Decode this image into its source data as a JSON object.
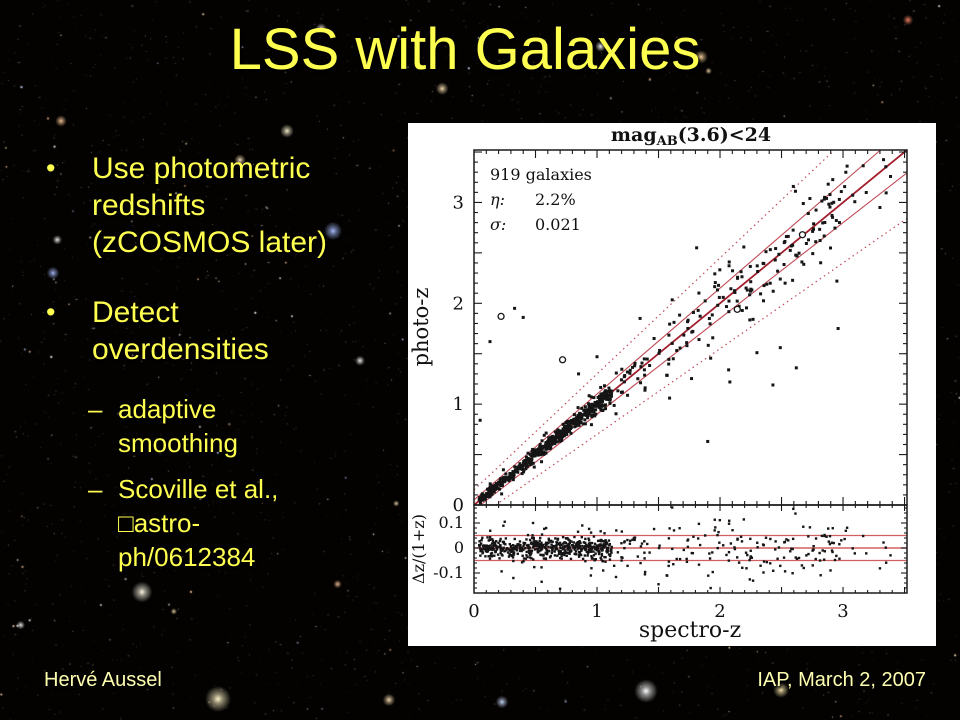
{
  "slide": {
    "title": "LSS with Galaxies",
    "bullets": [
      {
        "level": 1,
        "marker": "•",
        "text": "Use photometric\nredshifts\n(zCOSMOS later)"
      },
      {
        "level": 1,
        "marker": "•",
        "text": "Detect\noverdensities"
      },
      {
        "level": 2,
        "marker": "–",
        "text": "adaptive\nsmoothing"
      },
      {
        "level": 2,
        "marker": "–",
        "text": "Scoville et al.,\n□astro-\nph/0612384"
      }
    ],
    "footer": {
      "author": "Hervé Aussel",
      "venue": "IAP, March 2, 2007"
    },
    "colors": {
      "title": "#ffff4f",
      "body": "#ffff4f",
      "footer": "#ffffb0",
      "background": "#030201"
    }
  },
  "chart_data": {
    "type": "scatter",
    "title": {
      "prefix": "mag",
      "subscript": "AB",
      "suffix": "(3.6)<24",
      "full": "mag_AB(3.6)<24"
    },
    "stats": {
      "count": "919 galaxies",
      "eta_label": "η:",
      "eta_value": "2.2%",
      "sigma_label": "σ:",
      "sigma_value": "0.021"
    },
    "xlabel": "spectro-z",
    "main_panel": {
      "ylabel": "photo-z",
      "xlim": [
        0,
        3.52
      ],
      "ylim": [
        0,
        3.52
      ],
      "xticks": [
        0,
        1,
        2,
        3
      ],
      "xtick_labels": [
        "0",
        "1",
        "2",
        "3"
      ],
      "yticks": [
        0,
        1,
        2,
        3
      ],
      "ytick_labels": [
        "0",
        "1",
        "2",
        "3"
      ],
      "x_minor": 0.1,
      "y_minor": 0.1
    },
    "residual_panel": {
      "ylabel": "Δz/(1+z)",
      "ylim": [
        -0.18,
        0.17
      ],
      "yticks": [
        0.1,
        0,
        -0.1
      ],
      "ytick_labels": [
        "0.1",
        "0",
        "-0.1"
      ],
      "hlines": [
        0.05,
        0,
        -0.05
      ],
      "y_minor": 0.02
    },
    "lines": {
      "identity_slope": 1,
      "solid_offset": 0.05,
      "dotted_offset": 0.15
    },
    "scatter": {
      "seed": 1234,
      "clusters": [
        {
          "count": 560,
          "x_min": 0.03,
          "x_max": 1.12,
          "sigma": 0.02,
          "tail_frac": 0.12,
          "tail_sigma": 0.045
        },
        {
          "count": 40,
          "x_min": 1.12,
          "x_max": 1.62,
          "sigma": 0.05,
          "tail_frac": 0.15,
          "tail_sigma": 0.09
        },
        {
          "count": 135,
          "x_min": 1.62,
          "x_max": 3.05,
          "sigma": 0.055,
          "tail_frac": 0.18,
          "tail_sigma": 0.11
        },
        {
          "count": 12,
          "x_min": 3.0,
          "x_max": 3.45,
          "sigma": 0.05,
          "tail_frac": 0,
          "tail_sigma": 0.05
        }
      ],
      "outliers": [
        [
          0.33,
          1.95
        ],
        [
          0.4,
          1.86
        ],
        [
          0.13,
          1.62
        ],
        [
          0.05,
          0.84
        ],
        [
          1.0,
          1.47
        ],
        [
          1.62,
          1.45
        ],
        [
          1.59,
          1.06
        ],
        [
          1.81,
          2.55
        ],
        [
          2.07,
          1.34
        ],
        [
          2.08,
          1.22
        ],
        [
          2.3,
          1.51
        ],
        [
          2.43,
          1.19
        ],
        [
          2.49,
          1.56
        ],
        [
          2.96,
          1.75
        ],
        [
          1.9,
          0.63
        ],
        [
          2.62,
          1.36
        ],
        [
          1.35,
          1.85
        ],
        [
          2.95,
          2.22
        ],
        [
          0.85,
          1.3
        ],
        [
          3.3,
          2.95
        ]
      ],
      "open_circles": [
        [
          0.22,
          1.87
        ],
        [
          0.72,
          1.44
        ],
        [
          2.14,
          1.94
        ],
        [
          2.67,
          2.68
        ]
      ],
      "residual_extra": [
        [
          0.32,
          -0.12
        ],
        [
          0.55,
          -0.135
        ],
        [
          0.7,
          -0.163
        ],
        [
          0.95,
          -0.11
        ],
        [
          1.5,
          -0.145
        ],
        [
          0.25,
          0.105
        ],
        [
          0.48,
          0.1
        ],
        [
          1.05,
          -0.09
        ],
        [
          0.88,
          0.09
        ],
        [
          1.2,
          -0.05
        ],
        [
          1.3,
          0.04
        ]
      ]
    },
    "colors": {
      "identity": "#a31f2e",
      "solid": "#c04a55",
      "dotted": "#c04a55",
      "hline": "#d06060",
      "points": "#151515",
      "frame": "#1a1a1a"
    }
  }
}
